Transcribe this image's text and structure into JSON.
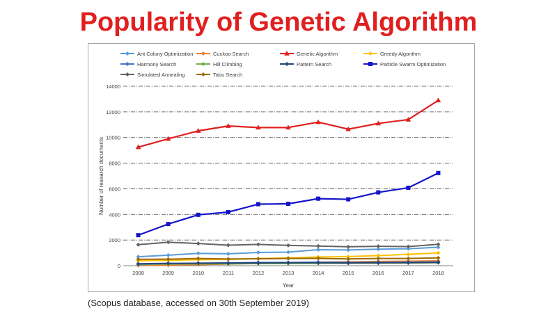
{
  "slide": {
    "title": "Popularity of Genetic Algorithm",
    "source_note": "(Scopus database, accessed on 30th September 2019)"
  },
  "chart_data": {
    "type": "line",
    "title": "",
    "xlabel": "Year",
    "ylabel": "Number of research documents",
    "x": [
      "2008",
      "2009",
      "2010",
      "2011",
      "2012",
      "2013",
      "2014",
      "2015",
      "2016",
      "2017",
      "2018"
    ],
    "ylim": [
      0,
      14000
    ],
    "yticks": [
      0,
      2000,
      4000,
      6000,
      8000,
      10000,
      12000,
      14000
    ],
    "grid": "horizontal dash-dot",
    "legend_position": "top",
    "series": [
      {
        "name": "Ant Colony Optimization",
        "color": "#5b9bd5",
        "marker": "diamond",
        "values": [
          700,
          820,
          960,
          930,
          1030,
          1060,
          1250,
          1230,
          1290,
          1320,
          1440
        ]
      },
      {
        "name": "Cuckoo Search",
        "color": "#ed7d31",
        "marker": "diamond",
        "values": [
          20,
          40,
          80,
          130,
          180,
          230,
          280,
          300,
          330,
          350,
          380
        ]
      },
      {
        "name": "Genetic Algorithm",
        "color": "#e02020",
        "marker": "triangle",
        "values": [
          9250,
          9900,
          10520,
          10900,
          10780,
          10780,
          11200,
          10650,
          11100,
          11400,
          12900
        ]
      },
      {
        "name": "Greedy Algorithm",
        "color": "#ffc000",
        "marker": "diamond",
        "values": [
          380,
          420,
          470,
          490,
          560,
          610,
          680,
          710,
          790,
          890,
          1000
        ]
      },
      {
        "name": "Harmony Search",
        "color": "#4472c4",
        "marker": "diamond",
        "values": [
          80,
          150,
          190,
          220,
          250,
          250,
          270,
          250,
          260,
          270,
          290
        ]
      },
      {
        "name": "Hill Climbing",
        "color": "#70ad47",
        "marker": "diamond",
        "values": [
          120,
          130,
          140,
          150,
          160,
          170,
          180,
          190,
          200,
          210,
          230
        ]
      },
      {
        "name": "Pattern Search",
        "color": "#264478",
        "marker": "diamond",
        "values": [
          150,
          180,
          200,
          210,
          220,
          230,
          230,
          220,
          230,
          240,
          260
        ]
      },
      {
        "name": "Particle Swarm Optimization",
        "color": "#1414c8",
        "marker": "square",
        "values": [
          2380,
          3250,
          3970,
          4180,
          4800,
          4830,
          5230,
          5180,
          5720,
          6080,
          7230
        ]
      },
      {
        "name": "Simulated Annealing",
        "color": "#636363",
        "marker": "diamond",
        "values": [
          1640,
          1830,
          1730,
          1600,
          1660,
          1590,
          1530,
          1480,
          1510,
          1490,
          1670
        ]
      },
      {
        "name": "Tabu Search",
        "color": "#9e6a03",
        "marker": "diamond",
        "values": [
          500,
          510,
          560,
          520,
          540,
          560,
          570,
          530,
          560,
          560,
          610
        ]
      }
    ]
  }
}
